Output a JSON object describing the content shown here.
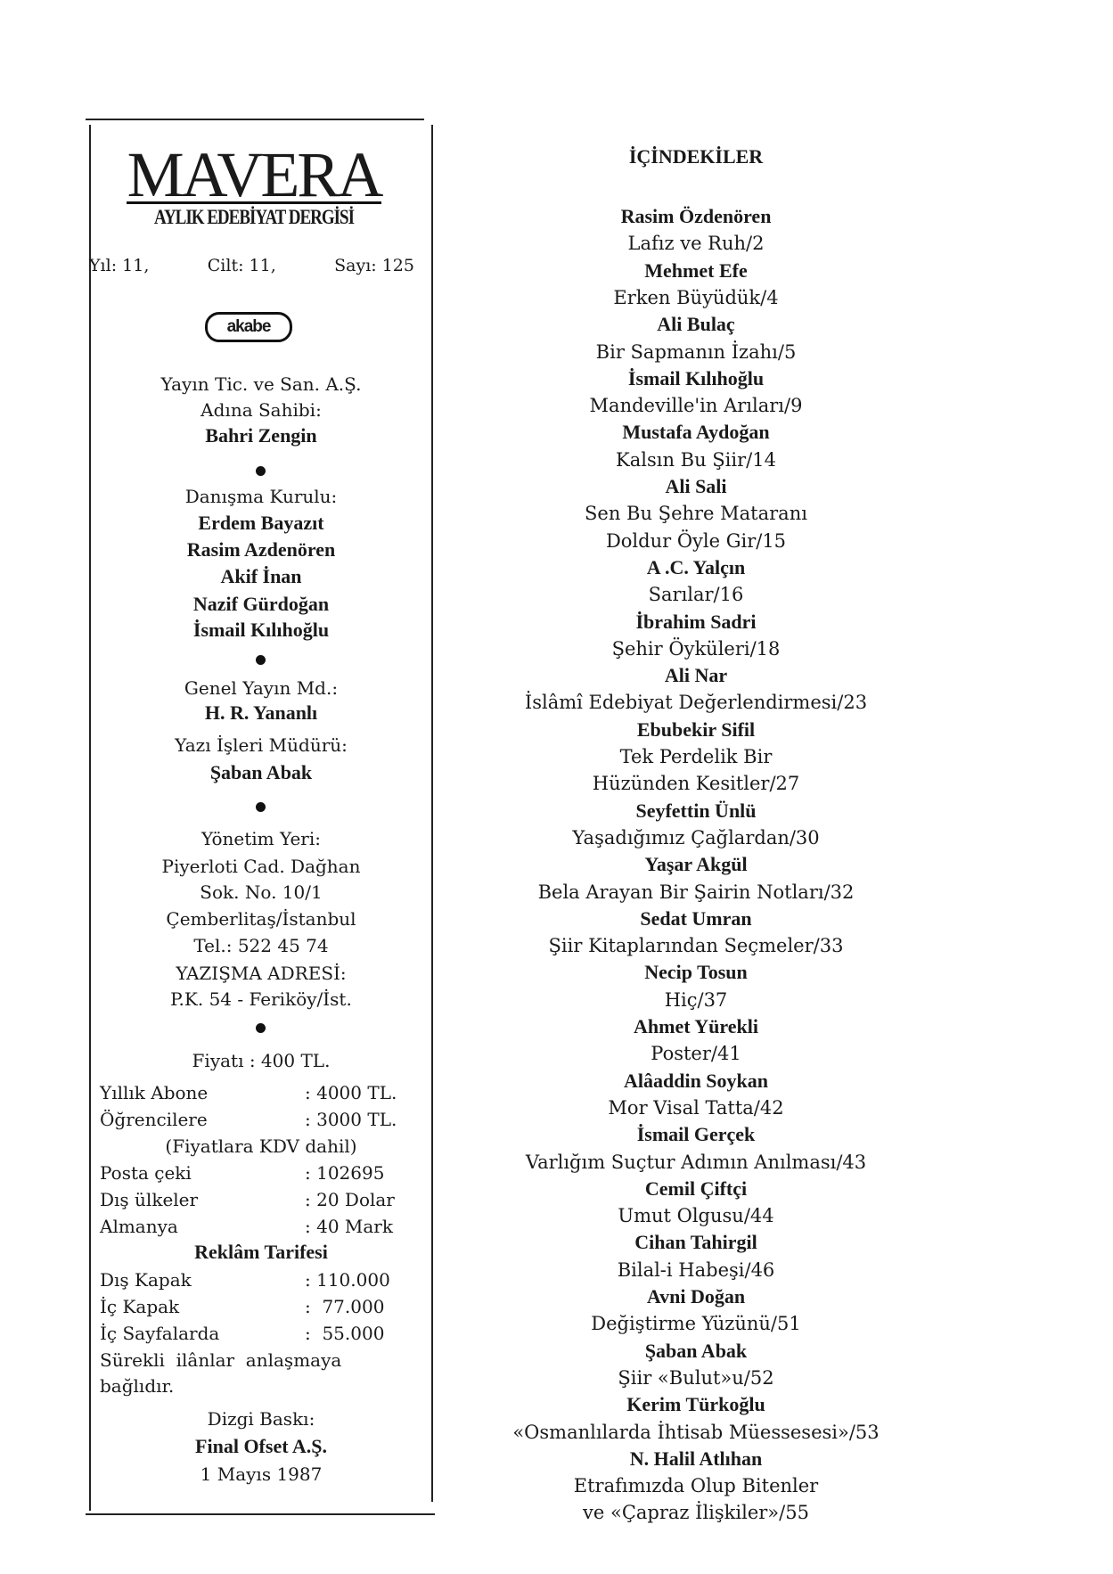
{
  "masthead": {
    "title": "MAVERA",
    "subtitle": "AYLIK EDEBİYAT DERGİSİ",
    "issue": [
      "Yıl: 11,",
      "Cilt: 11,",
      "Sayı: 125"
    ],
    "publisher_logo": "akabe"
  },
  "imprint": [
    {
      "t": "text",
      "text": "Yayın Tic. ve San. A.Ş."
    },
    {
      "t": "text",
      "text": "Adına Sahibi:"
    },
    {
      "t": "bold",
      "text": "Bahri Zengin"
    },
    {
      "t": "bullet"
    },
    {
      "t": "text",
      "text": "Danışma Kurulu:"
    },
    {
      "t": "bold",
      "text": "Erdem Bayazıt"
    },
    {
      "t": "bold",
      "text": "Rasim Azdenören"
    },
    {
      "t": "bold",
      "text": "Akif İnan"
    },
    {
      "t": "bold",
      "text": "Nazif Gürdoğan"
    },
    {
      "t": "bold",
      "text": "İsmail Kılıhoğlu"
    },
    {
      "t": "bullet"
    },
    {
      "t": "text",
      "text": "Genel Yayın Md.:"
    },
    {
      "t": "bold",
      "text": "H. R. Yananlı"
    },
    {
      "t": "text",
      "text": "Yazı İşleri Müdürü:"
    },
    {
      "t": "bold",
      "text": "Şaban Abak"
    },
    {
      "t": "bullet"
    },
    {
      "t": "text",
      "text": "Yönetim Yeri:"
    },
    {
      "t": "text",
      "text": "Piyerloti Cad. Dağhan"
    },
    {
      "t": "text",
      "text": "Sok. No. 10/1"
    },
    {
      "t": "text",
      "text": "Çemberlitaş/İstanbul"
    },
    {
      "t": "text",
      "text": "Tel.: 522 45 74"
    },
    {
      "t": "text",
      "text": "YAZIŞMA ADRESİ:"
    },
    {
      "t": "text",
      "text": "P.K. 54 - Feriköy/İst."
    },
    {
      "t": "bullet"
    },
    {
      "t": "text",
      "text": "Fiyatı : 400 TL."
    },
    {
      "t": "kv",
      "k": "Yıllık Abone",
      "v": ": 4000 TL."
    },
    {
      "t": "kv",
      "k": "Öğrencilere",
      "v": ": 3000 TL."
    },
    {
      "t": "text",
      "text": "(Fiyatlara KDV dahil)"
    },
    {
      "t": "kv",
      "k": "Posta çeki",
      "v": ": 102695"
    },
    {
      "t": "kv",
      "k": "Dış ülkeler",
      "v": ": 20 Dolar"
    },
    {
      "t": "kv",
      "k": "Almanya",
      "v": ": 40 Mark"
    },
    {
      "t": "bold",
      "text": "Reklâm Tarifesi"
    },
    {
      "t": "kv",
      "k": "Dış Kapak",
      "v": ": 110.000"
    },
    {
      "t": "kv",
      "k": "İç Kapak",
      "v": ":  77.000"
    },
    {
      "t": "kv",
      "k": "İç Sayfalarda",
      "v": ":  55.000"
    },
    {
      "t": "left",
      "text": "Sürekli  ilânlar  anlaşmaya"
    },
    {
      "t": "left",
      "text": "bağlıdır."
    },
    {
      "t": "text",
      "text": "Dizgi Baskı:"
    },
    {
      "t": "bold",
      "text": "Final Ofset A.Ş."
    },
    {
      "t": "text",
      "text": "1 Mayıs 1987"
    }
  ],
  "contents": {
    "title": "İÇİNDEKİLER",
    "entries": [
      {
        "author": "Rasim Özdenören",
        "title": [
          "Lafız ve Ruh/2"
        ]
      },
      {
        "author": "Mehmet Efe",
        "title": [
          "Erken Büyüdük/4"
        ]
      },
      {
        "author": "Ali Bulaç",
        "title": [
          "Bir Sapmanın İzahı/5"
        ]
      },
      {
        "author": "İsmail Kılıhoğlu",
        "title": [
          "Mandeville'in Arıları/9"
        ]
      },
      {
        "author": "Mustafa Aydoğan",
        "title": [
          "Kalsın Bu Şiir/14"
        ]
      },
      {
        "author": "Ali Sali",
        "title": [
          "Sen Bu Şehre Mataranı",
          "Doldur Öyle Gir/15"
        ]
      },
      {
        "author": "A .C. Yalçın",
        "title": [
          "Sarılar/16"
        ]
      },
      {
        "author": "İbrahim Sadri",
        "title": [
          "Şehir Öyküleri/18"
        ]
      },
      {
        "author": "Ali Nar",
        "title": [
          "İslâmî Edebiyat Değerlendirmesi/23"
        ]
      },
      {
        "author": "Ebubekir Sifil",
        "title": [
          "Tek Perdelik Bir",
          "Hüzünden Kesitler/27"
        ]
      },
      {
        "author": "Seyfettin Ünlü",
        "title": [
          "Yaşadığımız Çağlardan/30"
        ]
      },
      {
        "author": "Yaşar Akgül",
        "title": [
          "Bela Arayan Bir Şairin Notları/32"
        ]
      },
      {
        "author": "Sedat Umran",
        "title": [
          "Şiir Kitaplarından Seçmeler/33"
        ]
      },
      {
        "author": "Necip Tosun",
        "title": [
          "Hiç/37"
        ]
      },
      {
        "author": "Ahmet Yürekli",
        "title": [
          "Poster/41"
        ]
      },
      {
        "author": "Alâaddin Soykan",
        "title": [
          "Mor Visal Tatta/42"
        ]
      },
      {
        "author": "İsmail Gerçek",
        "title": [
          "Varlığım Suçtur Adımın Anılması/43"
        ]
      },
      {
        "author": "Cemil Çiftçi",
        "title": [
          "Umut Olgusu/44"
        ]
      },
      {
        "author": "Cihan Tahirgil",
        "title": [
          "Bilal-i Habeşi/46"
        ]
      },
      {
        "author": "Avni Doğan",
        "title": [
          "Değiştirme Yüzünü/51"
        ]
      },
      {
        "author": "Şaban Abak",
        "title": [
          "Şiir «Bulut»u/52"
        ]
      },
      {
        "author": "Kerim Türkoğlu",
        "title": [
          "«Osmanlılarda İhtisab Müessesesi»/53"
        ]
      },
      {
        "author": "N. Halil Atlıhan",
        "title": [
          "Etrafımızda Olup Bitenler",
          "ve «Çapraz İlişkiler»/55"
        ]
      }
    ]
  },
  "colors": {
    "ink": "#1a1a1a",
    "paper": "#ffffff"
  }
}
